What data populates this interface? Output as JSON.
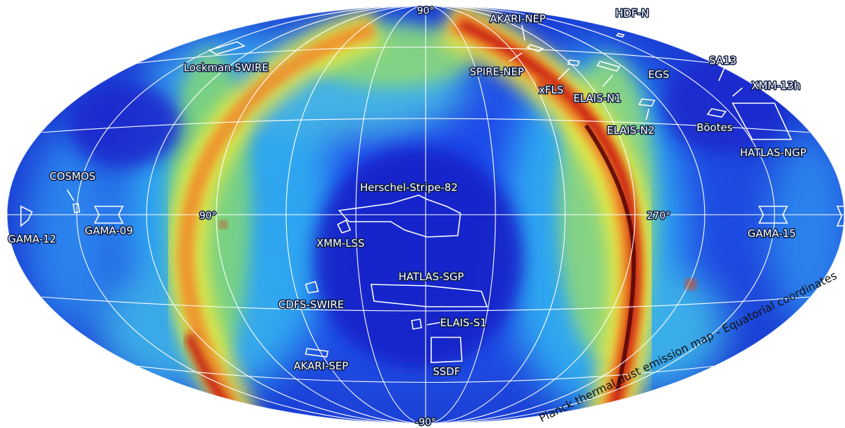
{
  "map": {
    "caption": "Planck  thermal dust emission map - Equatorial coordinates",
    "colors": {
      "low": "#1a2bd6",
      "mid": "#27a8f0",
      "high_mid": "#f6ea3a",
      "high": "#e8401c",
      "peak": "#6a0a08",
      "grid": "#ffffff"
    },
    "axis_labels": {
      "dec_north": "90°",
      "dec_south": "-90°",
      "ra_left": "90°",
      "ra_right": "270°"
    },
    "fields": [
      "AKARI-NEP",
      "HDF-N",
      "SPIRE-NEP",
      "SA13",
      "Lockman-SWIRE",
      "EGS",
      "xFLS",
      "ELAIS-N1",
      "XMM-13h",
      "ELAIS-N2",
      "Böotes",
      "HATLAS-NGP",
      "COSMOS",
      "Herschel-Stripe-82",
      "GAMA-12",
      "GAMA-09",
      "XMM-LSS",
      "GAMA-15",
      "HATLAS-SGP",
      "CDFS-SWIRE",
      "ELAIS-S1",
      "AKARI-SEP",
      "SSDF"
    ]
  }
}
